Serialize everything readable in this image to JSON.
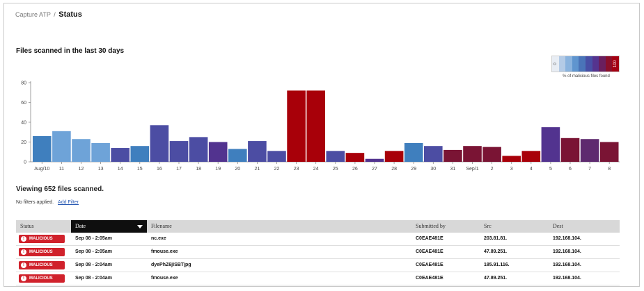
{
  "breadcrumb": {
    "parent": "Capture ATP",
    "separator": "/",
    "current": "Status"
  },
  "chart_section_title": "Files scanned in the last 30 days",
  "legend": {
    "min_label": "0",
    "max_label": "100",
    "caption": "% of malicious files found",
    "colors": [
      "#e8edf4",
      "#b4cbe6",
      "#8ab3de",
      "#5f95cf",
      "#4a74b8",
      "#484fa5",
      "#55348f",
      "#6a1f5e",
      "#8a0f2a",
      "#a30012"
    ]
  },
  "chart_data": {
    "type": "bar",
    "title": "Files scanned in the last 30 days",
    "xlabel": "",
    "ylabel": "",
    "ylim": [
      0,
      80
    ],
    "yticks": [
      0,
      20,
      40,
      60,
      80
    ],
    "grid": false,
    "categories": [
      "Aug/10",
      "11",
      "12",
      "13",
      "14",
      "15",
      "16",
      "17",
      "18",
      "19",
      "20",
      "21",
      "22",
      "23",
      "24",
      "25",
      "26",
      "27",
      "28",
      "29",
      "30",
      "31",
      "Sep/1",
      "2",
      "3",
      "4",
      "5",
      "6",
      "7",
      "8"
    ],
    "values": [
      26,
      31,
      23,
      19,
      14,
      16,
      37,
      21,
      25,
      20,
      13,
      21,
      11,
      72,
      72,
      11,
      9,
      3,
      11,
      19,
      16,
      12,
      16,
      15,
      6,
      11,
      35,
      24,
      23,
      20
    ],
    "colors": [
      "#3f7fbe",
      "#6ea3d8",
      "#6ea3d8",
      "#6ea3d8",
      "#4c4da3",
      "#3f7fbe",
      "#4c4da3",
      "#4c4da3",
      "#4c4da3",
      "#52338f",
      "#3f7fbe",
      "#4c4da3",
      "#4c4da3",
      "#a80009",
      "#a80009",
      "#4c4da3",
      "#a80009",
      "#52338f",
      "#a80009",
      "#3f7fbe",
      "#4c4da3",
      "#7a1434",
      "#7a1434",
      "#7a1434",
      "#a80009",
      "#a80009",
      "#52338f",
      "#7a1434",
      "#5e2a6f",
      "#7a1434"
    ],
    "legend_position": "top-right"
  },
  "summary": {
    "viewing_text": "Viewing 652 files scanned.",
    "filters_text": "No filters applied.",
    "add_filter_label": "Add Filter"
  },
  "table": {
    "headers": {
      "status": "Status",
      "date": "Date",
      "filename": "Filename",
      "submitted_by": "Submitted by",
      "src": "Src",
      "dest": "Dest"
    },
    "sorted_column": "date",
    "rows": [
      {
        "status": "MALICIOUS",
        "date": "Sep 08 - 2:05am",
        "filename": "nc.exe",
        "submitted_by": "C0EAE481E",
        "src": "203.81.81.",
        "dest": "192.168.104."
      },
      {
        "status": "MALICIOUS",
        "date": "Sep 08 - 2:05am",
        "filename": "fmouse.exe",
        "submitted_by": "C0EAE481E",
        "src": "47.89.251.",
        "dest": "192.168.104."
      },
      {
        "status": "MALICIOUS",
        "date": "Sep 08 - 2:04am",
        "filename": "dyePhZ6jISBTjpg",
        "submitted_by": "C0EAE481E",
        "src": "185.91.116.",
        "dest": "192.168.104."
      },
      {
        "status": "MALICIOUS",
        "date": "Sep 08 - 2:04am",
        "filename": "fmouse.exe",
        "submitted_by": "C0EAE481E",
        "src": "47.89.251.",
        "dest": "192.168.104."
      }
    ]
  }
}
